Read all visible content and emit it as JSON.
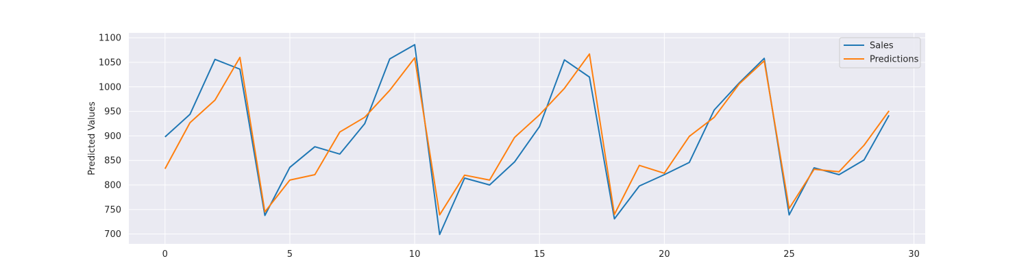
{
  "chart_data": {
    "type": "line",
    "title": "",
    "xlabel": "",
    "ylabel": "Predicted Values",
    "xlim": [
      -1.45,
      30.45
    ],
    "ylim": [
      680,
      1110
    ],
    "xticks": [
      0,
      5,
      10,
      15,
      20,
      25,
      30
    ],
    "yticks": [
      700,
      750,
      800,
      850,
      900,
      950,
      1000,
      1050,
      1100
    ],
    "grid": true,
    "legend_position": "top-right",
    "x": [
      0,
      1,
      2,
      3,
      4,
      5,
      6,
      7,
      8,
      9,
      10,
      11,
      12,
      13,
      14,
      15,
      16,
      17,
      18,
      19,
      20,
      21,
      22,
      23,
      24,
      25,
      26,
      27,
      28,
      29
    ],
    "series": [
      {
        "name": "Sales",
        "color": "#1f77b4",
        "values": [
          898,
          944,
          1056,
          1036,
          738,
          836,
          878,
          863,
          925,
          1057,
          1086,
          699,
          814,
          800,
          847,
          919,
          1055,
          1020,
          731,
          798,
          821,
          846,
          953,
          1008,
          1058,
          739,
          835,
          821,
          851,
          942
        ]
      },
      {
        "name": "Predictions",
        "color": "#ff7f0e",
        "values": [
          833,
          927,
          973,
          1060,
          745,
          810,
          821,
          908,
          938,
          993,
          1059,
          739,
          820,
          810,
          897,
          943,
          997,
          1067,
          740,
          840,
          824,
          899,
          938,
          1006,
          1053,
          752,
          832,
          827,
          881,
          951
        ]
      }
    ]
  },
  "style": {
    "plot_background": "#eaeaf2",
    "grid_color": "#ffffff",
    "text_color": "#262626"
  }
}
